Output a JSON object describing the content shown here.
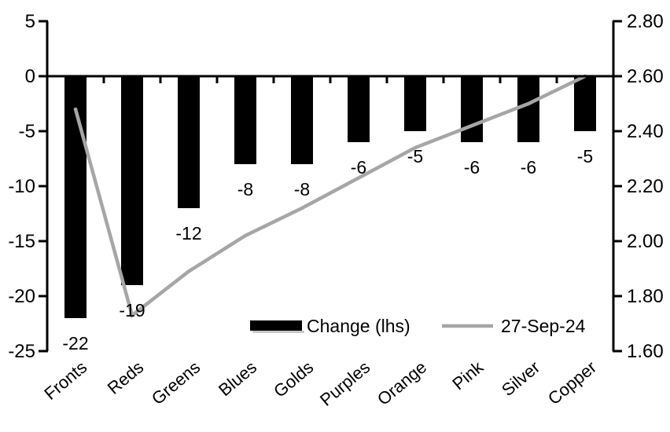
{
  "chart_data": {
    "type": "combo",
    "title": "",
    "categories": [
      "Fronts",
      "Reds",
      "Greens",
      "Blues",
      "Golds",
      "Purples",
      "Orange",
      "Pink",
      "Silver",
      "Copper"
    ],
    "series": [
      {
        "name": "Change (lhs)",
        "type": "bar",
        "axis": "left",
        "color": "#000000",
        "values": [
          -22,
          -19,
          -12,
          -8,
          -8,
          -6,
          -5,
          -6,
          -6,
          -5
        ],
        "labels": [
          "-22",
          "-19",
          "-12",
          "-8",
          "-8",
          "-6",
          "-5",
          "-6",
          "-6",
          "-5"
        ]
      },
      {
        "name": "27-Sep-24",
        "type": "line",
        "axis": "right",
        "color": "#a6a6a6",
        "values": [
          2.48,
          1.73,
          1.89,
          2.02,
          2.12,
          2.23,
          2.34,
          2.42,
          2.5,
          2.6
        ]
      }
    ],
    "left_axis": {
      "min": -25,
      "max": 5,
      "ticks": [
        "5",
        "0",
        "-5",
        "-10",
        "-15",
        "-20",
        "-25"
      ]
    },
    "right_axis": {
      "min": 1.6,
      "max": 2.8,
      "ticks": [
        "2.80",
        "2.60",
        "2.40",
        "2.20",
        "2.00",
        "1.80",
        "1.60"
      ]
    },
    "legend_position": "bottom-inside",
    "grid": "off",
    "colors": {
      "bar": "#000000",
      "line": "#a6a6a6",
      "axis": "#000000",
      "legend_shadow": "#c8c8c8",
      "background": "#ffffff"
    }
  }
}
